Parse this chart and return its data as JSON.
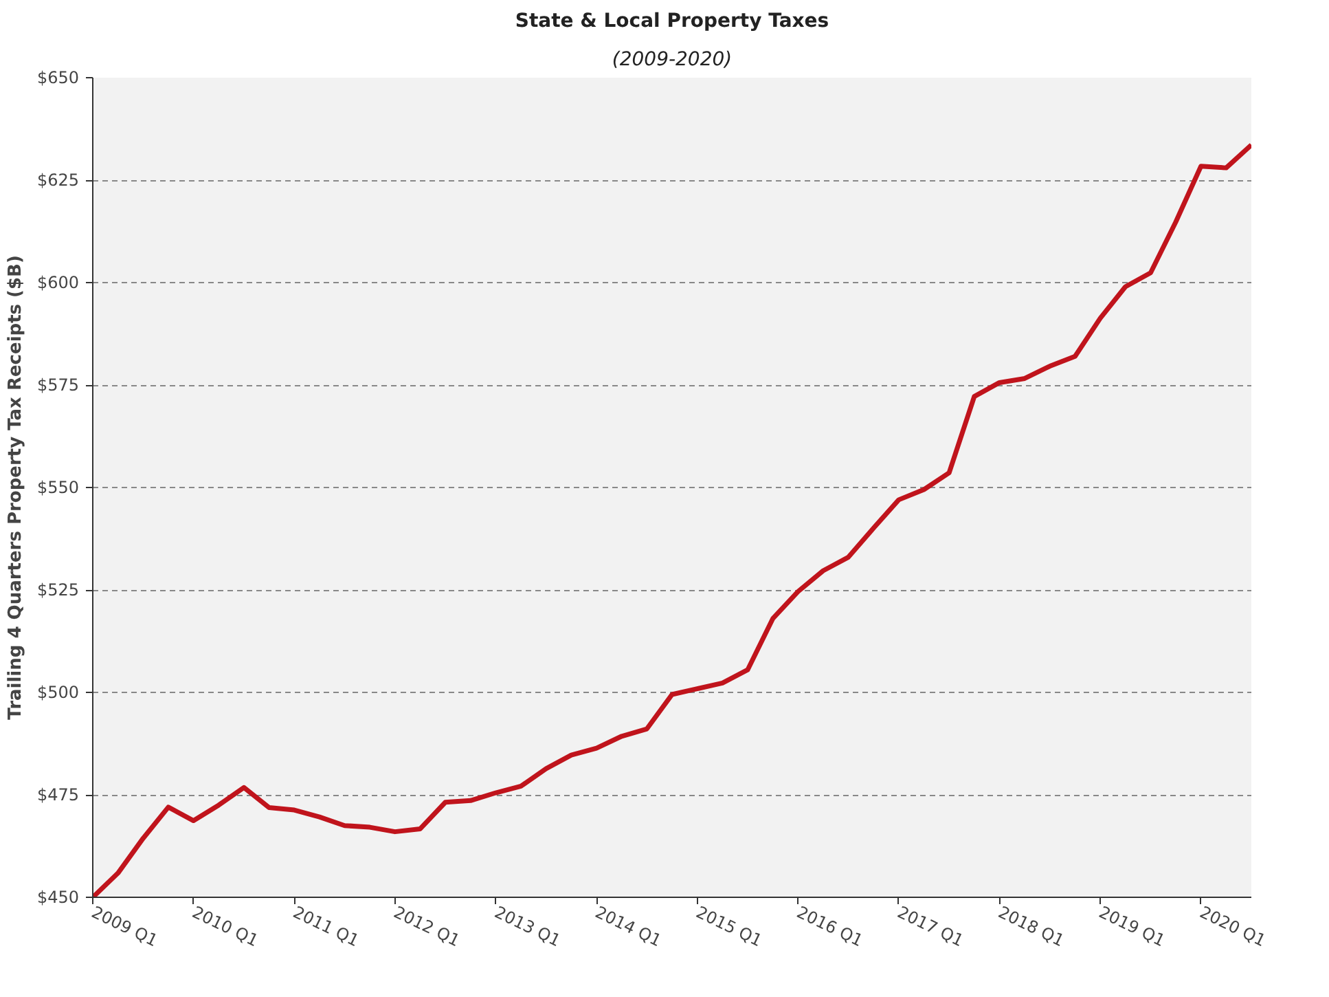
{
  "chart_data": {
    "type": "line",
    "title": "State & Local Property Taxes",
    "subtitle": "(2009-2020)",
    "ylabel": "Trailing 4 Quarters Property Tax Receipts ($B)",
    "categories": [
      "2009 Q1",
      null,
      null,
      null,
      "2010 Q1",
      null,
      null,
      null,
      "2011 Q1",
      null,
      null,
      null,
      "2012 Q1",
      null,
      null,
      null,
      "2013 Q1",
      null,
      null,
      null,
      "2014 Q1",
      null,
      null,
      null,
      "2015 Q1",
      null,
      null,
      null,
      "2016 Q1",
      null,
      null,
      null,
      "2017 Q1",
      null,
      null,
      null,
      "2018 Q1",
      null,
      null,
      null,
      "2019 Q1",
      null,
      null,
      null,
      "2020 Q1",
      null,
      null
    ],
    "series": [
      {
        "color": "#c0141c",
        "values": [
          450,
          455.9,
          464.4,
          472,
          468.7,
          472.5,
          476.8,
          471.9,
          471.3,
          469.6,
          467.5,
          467.1,
          466,
          466.7,
          473.2,
          473.6,
          475.5,
          477.1,
          481.4,
          484.7,
          486.4,
          489.3,
          491.1,
          499.5,
          500.9,
          502.3,
          505.5,
          518,
          524.6,
          529.7,
          533,
          540.1,
          547,
          549.5,
          553.6,
          572.2,
          575.6,
          576.6,
          579.6,
          582,
          591.3,
          599,
          602.4,
          614.8,
          628.4,
          628,
          633.6
        ]
      }
    ],
    "ylim": [
      450,
      650
    ],
    "yticks": [
      {
        "value": 450,
        "label": "$450"
      },
      {
        "value": 475,
        "label": "$475"
      },
      {
        "value": 500,
        "label": "$500"
      },
      {
        "value": 525,
        "label": "$525"
      },
      {
        "value": 550,
        "label": "$550"
      },
      {
        "value": 575,
        "label": "$575"
      },
      {
        "value": 600,
        "label": "$600"
      },
      {
        "value": 625,
        "label": "$625"
      },
      {
        "value": 650,
        "label": "$650"
      }
    ],
    "grid": "y",
    "line_style": "solid"
  }
}
